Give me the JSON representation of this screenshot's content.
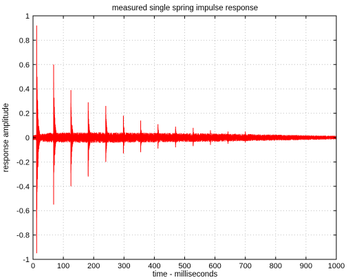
{
  "chart_data": {
    "type": "line",
    "title": "measured single spring impulse response",
    "xlabel": "time - milliseconds",
    "ylabel": "response amplitude",
    "xlim": [
      0,
      1000
    ],
    "ylim": [
      -1,
      1
    ],
    "x_ticks": [
      0,
      100,
      200,
      300,
      400,
      500,
      600,
      700,
      800,
      900,
      1000
    ],
    "y_ticks": [
      -1,
      -0.8,
      -0.6,
      -0.4,
      -0.2,
      0,
      0.2,
      0.4,
      0.6,
      0.8,
      1
    ],
    "x_tick_labels": [
      "0",
      "100",
      "200",
      "300",
      "400",
      "500",
      "600",
      "700",
      "800",
      "900",
      "1000"
    ],
    "y_tick_labels": [
      "-1",
      "-0.8",
      "-0.6",
      "-0.4",
      "-0.2",
      "0",
      "0.2",
      "0.4",
      "0.6",
      "0.8",
      "1"
    ],
    "grid": true,
    "grid_style": "dotted",
    "line_color": "#ff0000",
    "series": [
      {
        "peaks": [
          {
            "t": 12,
            "max": 0.92,
            "min": -0.95
          },
          {
            "t": 68,
            "max": 0.6,
            "min": -0.55
          },
          {
            "t": 125,
            "max": 0.39,
            "min": -0.4
          },
          {
            "t": 182,
            "max": 0.29,
            "min": -0.32
          },
          {
            "t": 240,
            "max": 0.26,
            "min": -0.2
          },
          {
            "t": 298,
            "max": 0.18,
            "min": -0.13
          },
          {
            "t": 355,
            "max": 0.14,
            "min": -0.12
          },
          {
            "t": 412,
            "max": 0.11,
            "min": -0.09
          },
          {
            "t": 470,
            "max": 0.09,
            "min": -0.08
          },
          {
            "t": 528,
            "max": 0.08,
            "min": -0.07
          },
          {
            "t": 585,
            "max": 0.06,
            "min": -0.06
          },
          {
            "t": 643,
            "max": 0.05,
            "min": -0.05
          },
          {
            "t": 700,
            "max": 0.05,
            "min": -0.04
          }
        ],
        "noise_floor": [
          {
            "t": 0,
            "amp": 0.02
          },
          {
            "t": 50,
            "amp": 0.04
          },
          {
            "t": 200,
            "amp": 0.045
          },
          {
            "t": 400,
            "amp": 0.04
          },
          {
            "t": 600,
            "amp": 0.035
          },
          {
            "t": 800,
            "amp": 0.025
          },
          {
            "t": 1000,
            "amp": 0.015
          }
        ]
      }
    ]
  }
}
